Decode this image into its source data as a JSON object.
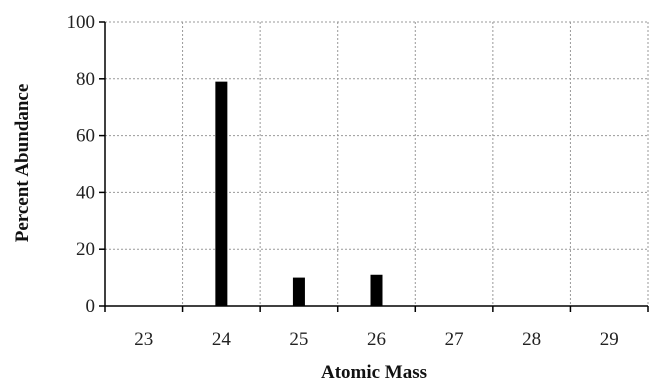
{
  "chart_data": {
    "type": "bar",
    "xlabel": "Atomic Mass",
    "ylabel": "Percent Abundance",
    "categories": [
      "23",
      "24",
      "25",
      "26",
      "27",
      "28",
      "29"
    ],
    "values": [
      0,
      79,
      10,
      11,
      0,
      0,
      0
    ],
    "ylim": [
      0,
      100
    ],
    "yticks": [
      0,
      20,
      40,
      60,
      80,
      100
    ],
    "grid": true,
    "bar_color": "#000000",
    "grid_color": "#999999"
  }
}
